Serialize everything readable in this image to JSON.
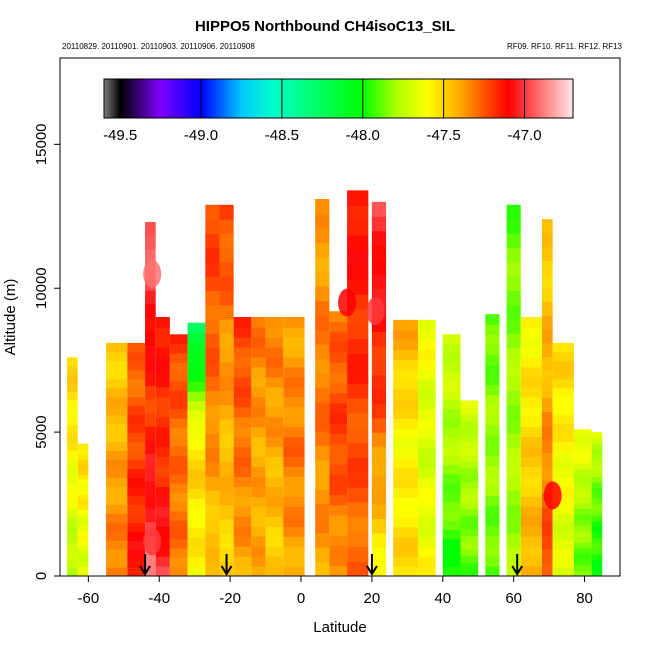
{
  "chart_data": {
    "type": "heatmap",
    "title": "HIPPO5 Northbound CH4isoC13_SIL",
    "subtitle_left": "20110829. 20110901. 20110903. 20110906. 20110908",
    "subtitle_right": "RF09. RF10. RF11. RF12. RF13",
    "xlabel": "Latitude",
    "ylabel": "Altitude (m)",
    "xlim": [
      -68,
      90
    ],
    "ylim": [
      0,
      18000
    ],
    "x_ticks": [
      -60,
      -40,
      -20,
      0,
      20,
      40,
      60,
      80
    ],
    "y_ticks": [
      0,
      5000,
      10000,
      15000
    ],
    "x_tick_labels": [
      "-60",
      "-40",
      "-20",
      "0",
      "20",
      "40",
      "60",
      "80"
    ],
    "y_tick_labels": [
      "0",
      "5000",
      "10000",
      "15000"
    ],
    "colorbar": {
      "range": [
        -49.6,
        -46.7
      ],
      "ticks": [
        -49.5,
        -49.0,
        -48.5,
        -48.0,
        -47.5,
        -47.0
      ],
      "tick_labels": [
        "-49.5",
        "-49.0",
        "-48.5",
        "-48.0",
        "-47.5",
        "-47.0"
      ],
      "colors": [
        "#808080",
        "#000000",
        "#7f00ff",
        "#0000ff",
        "#00c8ff",
        "#00ffc8",
        "#00ff00",
        "#aaff00",
        "#ffff00",
        "#ffaa00",
        "#ff5500",
        "#ff0000",
        "#ffe6e6"
      ],
      "color_stops": [
        -49.6,
        -49.5,
        -49.25,
        -49.0,
        -48.75,
        -48.55,
        -48.0,
        -47.8,
        -47.6,
        -47.4,
        -47.25,
        -47.1,
        -46.7
      ]
    },
    "arrows_latitude": [
      -44,
      -21,
      20,
      61
    ],
    "columns": [
      {
        "x0": -66,
        "x1": -63,
        "top": 7600,
        "bottom": -47.8,
        "mid": -47.6,
        "upper": -47.5
      },
      {
        "x0": -63,
        "x1": -60,
        "top": 4600,
        "bottom": -47.7,
        "mid": -47.6,
        "upper": -47.5
      },
      {
        "x0": -55,
        "x1": -49,
        "top": 8100,
        "bottom": -47.3,
        "mid": -47.4,
        "upper": -47.5
      },
      {
        "x0": -49,
        "x1": -44,
        "top": 8100,
        "bottom": -47.1,
        "mid": -47.2,
        "upper": -47.3
      },
      {
        "x0": -44,
        "x1": -41,
        "top": 12300,
        "bottom": -46.9,
        "mid": -47.2,
        "upper": -46.9
      },
      {
        "x0": -41,
        "x1": -37,
        "top": 9000,
        "bottom": -47.0,
        "mid": -47.2,
        "upper": -47.1
      },
      {
        "x0": -37,
        "x1": -32,
        "top": 8400,
        "bottom": -47.3,
        "mid": -47.3,
        "upper": -47.2
      },
      {
        "x0": -32,
        "x1": -27,
        "top": 8800,
        "bottom": -47.6,
        "mid": -47.5,
        "upper": -48.3
      },
      {
        "x0": -27,
        "x1": -23,
        "top": 12900,
        "bottom": -47.5,
        "mid": -47.3,
        "upper": -47.2
      },
      {
        "x0": -23,
        "x1": -19,
        "top": 12900,
        "bottom": -47.5,
        "mid": -47.4,
        "upper": -47.2
      },
      {
        "x0": -19,
        "x1": -14,
        "top": 9000,
        "bottom": -47.4,
        "mid": -47.3,
        "upper": -47.2
      },
      {
        "x0": -14,
        "x1": -10,
        "top": 9000,
        "bottom": -47.4,
        "mid": -47.4,
        "upper": -47.3
      },
      {
        "x0": -10,
        "x1": -5,
        "top": 9000,
        "bottom": -47.5,
        "mid": -47.4,
        "upper": -47.3
      },
      {
        "x0": -5,
        "x1": 1,
        "top": 9000,
        "bottom": -47.4,
        "mid": -47.3,
        "upper": -47.4
      },
      {
        "x0": 4,
        "x1": 8,
        "top": 13100,
        "bottom": -47.4,
        "mid": -47.3,
        "upper": -47.4
      },
      {
        "x0": 8,
        "x1": 13,
        "top": 9200,
        "bottom": -47.4,
        "mid": -47.2,
        "upper": -47.3
      },
      {
        "x0": 13,
        "x1": 19,
        "top": 13400,
        "bottom": -47.3,
        "mid": -47.2,
        "upper": -47.1
      },
      {
        "x0": 20,
        "x1": 24,
        "top": 13000,
        "bottom": -47.6,
        "mid": -47.2,
        "upper": -47.0
      },
      {
        "x0": 26,
        "x1": 33,
        "top": 8900,
        "bottom": -47.5,
        "mid": -47.6,
        "upper": -47.4
      },
      {
        "x0": 33,
        "x1": 38,
        "top": 8900,
        "bottom": -47.6,
        "mid": -47.7,
        "upper": -47.6
      },
      {
        "x0": 40,
        "x1": 45,
        "top": 8400,
        "bottom": -48.0,
        "mid": -47.8,
        "upper": -47.7
      },
      {
        "x0": 45,
        "x1": 50,
        "top": 6100,
        "bottom": -47.9,
        "mid": -47.8,
        "upper": -47.7
      },
      {
        "x0": 52,
        "x1": 56,
        "top": 9100,
        "bottom": -47.9,
        "mid": -47.8,
        "upper": -47.9
      },
      {
        "x0": 58,
        "x1": 62,
        "top": 12900,
        "bottom": -47.8,
        "mid": -47.8,
        "upper": -47.9
      },
      {
        "x0": 62,
        "x1": 68,
        "top": 9000,
        "bottom": -47.4,
        "mid": -47.5,
        "upper": -47.6
      },
      {
        "x0": 68,
        "x1": 71,
        "top": 12400,
        "bottom": -47.2,
        "mid": -47.4,
        "upper": -47.5
      },
      {
        "x0": 71,
        "x1": 77,
        "top": 8100,
        "bottom": -47.7,
        "mid": -47.6,
        "upper": -47.5
      },
      {
        "x0": 77,
        "x1": 82,
        "top": 5100,
        "bottom": -47.9,
        "mid": -47.8,
        "upper": -47.6
      },
      {
        "x0": 82,
        "x1": 85,
        "top": 5000,
        "bottom": -48.0,
        "mid": -47.9,
        "upper": -47.7
      }
    ],
    "hotspots": [
      {
        "x": -42,
        "y": 1200,
        "value": -47.0
      },
      {
        "x": -42,
        "y": 10500,
        "value": -46.9
      },
      {
        "x": 21,
        "y": 9200,
        "value": -47.0
      },
      {
        "x": 71,
        "y": 2800,
        "value": -47.1
      },
      {
        "x": 13,
        "y": 9500,
        "value": -47.1
      }
    ]
  }
}
